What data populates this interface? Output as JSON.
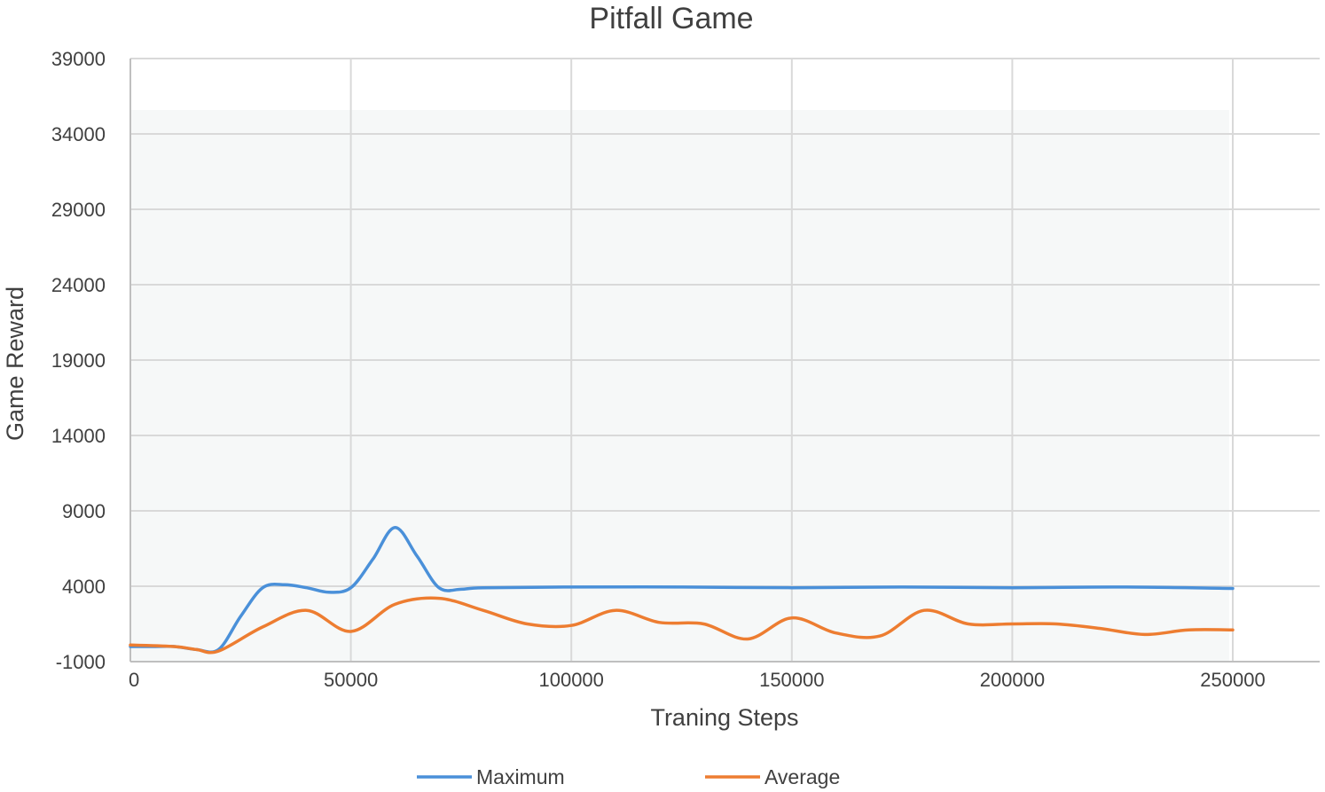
{
  "chart_data": {
    "type": "line",
    "title": "Pitfall Game",
    "xlabel": "Traning Steps",
    "ylabel": "Game Reward",
    "xlim": [
      0,
      250000
    ],
    "ylim": [
      -1000,
      39000
    ],
    "xticks": [
      0,
      50000,
      100000,
      150000,
      200000,
      250000
    ],
    "yticks": [
      -1000,
      4000,
      9000,
      14000,
      19000,
      24000,
      29000,
      34000,
      39000
    ],
    "grid": true,
    "legend_position": "bottom",
    "series": [
      {
        "name": "Maximum",
        "color": "#4a90d9",
        "points": [
          [
            0,
            0
          ],
          [
            5000,
            0
          ],
          [
            10000,
            0
          ],
          [
            15000,
            -200
          ],
          [
            20000,
            -200
          ],
          [
            25000,
            2000
          ],
          [
            30000,
            3900
          ],
          [
            35000,
            4100
          ],
          [
            40000,
            3900
          ],
          [
            45000,
            3600
          ],
          [
            50000,
            3900
          ],
          [
            55000,
            5800
          ],
          [
            60000,
            7900
          ],
          [
            65000,
            6000
          ],
          [
            70000,
            3900
          ],
          [
            75000,
            3800
          ],
          [
            80000,
            3900
          ],
          [
            100000,
            3950
          ],
          [
            125000,
            3950
          ],
          [
            150000,
            3900
          ],
          [
            175000,
            3950
          ],
          [
            200000,
            3900
          ],
          [
            225000,
            3950
          ],
          [
            250000,
            3850
          ]
        ]
      },
      {
        "name": "Average",
        "color": "#ed7d31",
        "points": [
          [
            0,
            100
          ],
          [
            10000,
            0
          ],
          [
            15000,
            -200
          ],
          [
            20000,
            -300
          ],
          [
            30000,
            1300
          ],
          [
            40000,
            2400
          ],
          [
            50000,
            1000
          ],
          [
            60000,
            2800
          ],
          [
            70000,
            3200
          ],
          [
            80000,
            2400
          ],
          [
            90000,
            1500
          ],
          [
            100000,
            1400
          ],
          [
            110000,
            2400
          ],
          [
            120000,
            1600
          ],
          [
            130000,
            1500
          ],
          [
            140000,
            500
          ],
          [
            150000,
            1900
          ],
          [
            160000,
            900
          ],
          [
            170000,
            700
          ],
          [
            180000,
            2400
          ],
          [
            190000,
            1500
          ],
          [
            200000,
            1500
          ],
          [
            210000,
            1500
          ],
          [
            220000,
            1200
          ],
          [
            230000,
            800
          ],
          [
            240000,
            1100
          ],
          [
            250000,
            1100
          ]
        ]
      }
    ]
  }
}
